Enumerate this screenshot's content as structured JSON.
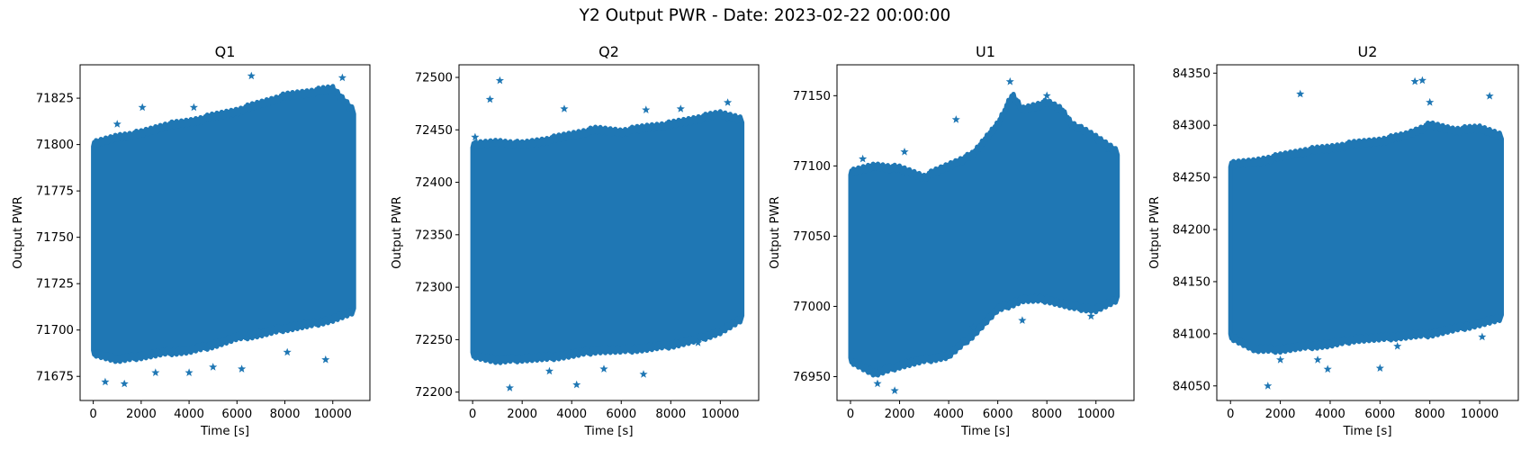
{
  "suptitle": "Y2 Output PWR - Date: 2023-02-22 00:00:00",
  "marker_color": "#1f77b4",
  "chart_data": [
    {
      "type": "scatter",
      "title": "Q1",
      "xlabel": "Time [s]",
      "ylabel": "Output PWR",
      "xlim": [
        -550,
        11550
      ],
      "ylim": [
        71662,
        71843
      ],
      "xticks": [
        0,
        2000,
        4000,
        6000,
        8000,
        10000
      ],
      "yticks": [
        71675,
        71700,
        71725,
        71750,
        71775,
        71800,
        71825
      ],
      "band": {
        "x": [
          0,
          1000,
          2000,
          3000,
          4000,
          5000,
          6000,
          7000,
          8000,
          9000,
          10000,
          10900
        ],
        "lower": [
          71688,
          71684,
          71686,
          71688,
          71689,
          71692,
          71696,
          71698,
          71701,
          71703,
          71706,
          71710
        ],
        "upper": [
          71800,
          71804,
          71806,
          71810,
          71812,
          71815,
          71818,
          71822,
          71826,
          71828,
          71830,
          71818
        ]
      },
      "outliers": [
        {
          "x": 500,
          "y": 71672
        },
        {
          "x": 1000,
          "y": 71811
        },
        {
          "x": 2050,
          "y": 71820
        },
        {
          "x": 1300,
          "y": 71671
        },
        {
          "x": 2600,
          "y": 71677
        },
        {
          "x": 4000,
          "y": 71677
        },
        {
          "x": 4200,
          "y": 71820
        },
        {
          "x": 5000,
          "y": 71680
        },
        {
          "x": 6200,
          "y": 71679
        },
        {
          "x": 6600,
          "y": 71837
        },
        {
          "x": 8100,
          "y": 71688
        },
        {
          "x": 9700,
          "y": 71684
        },
        {
          "x": 10400,
          "y": 71836
        }
      ]
    },
    {
      "type": "scatter",
      "title": "Q2",
      "xlabel": "Time [s]",
      "ylabel": "Output PWR",
      "xlim": [
        -550,
        11550
      ],
      "ylim": [
        72192,
        72512
      ],
      "xticks": [
        0,
        2000,
        4000,
        6000,
        8000,
        10000
      ],
      "yticks": [
        72200,
        72250,
        72300,
        72350,
        72400,
        72450,
        72500
      ],
      "band": {
        "x": [
          0,
          1000,
          2000,
          3000,
          4000,
          5000,
          6000,
          7000,
          8000,
          9000,
          10000,
          10900
        ],
        "lower": [
          72236,
          72230,
          72232,
          72233,
          72236,
          72240,
          72240,
          72242,
          72245,
          72250,
          72258,
          72270
        ],
        "upper": [
          72435,
          72438,
          72436,
          72440,
          72445,
          72450,
          72448,
          72452,
          72455,
          72460,
          72465,
          72460
        ]
      },
      "outliers": [
        {
          "x": 100,
          "y": 72443
        },
        {
          "x": 700,
          "y": 72479
        },
        {
          "x": 1100,
          "y": 72497
        },
        {
          "x": 1500,
          "y": 72204
        },
        {
          "x": 3100,
          "y": 72220
        },
        {
          "x": 3700,
          "y": 72470
        },
        {
          "x": 4200,
          "y": 72207
        },
        {
          "x": 5300,
          "y": 72222
        },
        {
          "x": 6900,
          "y": 72217
        },
        {
          "x": 7000,
          "y": 72469
        },
        {
          "x": 8400,
          "y": 72470
        },
        {
          "x": 10300,
          "y": 72476
        },
        {
          "x": 9100,
          "y": 72247
        }
      ]
    },
    {
      "type": "scatter",
      "title": "U1",
      "xlabel": "Time [s]",
      "ylabel": "Output PWR",
      "xlim": [
        -550,
        11550
      ],
      "ylim": [
        76933,
        77172
      ],
      "xticks": [
        0,
        2000,
        4000,
        6000,
        8000,
        10000
      ],
      "yticks": [
        76950,
        77000,
        77050,
        77100,
        77150
      ],
      "band": {
        "x": [
          0,
          1000,
          2000,
          3000,
          4000,
          5000,
          6000,
          6600,
          7000,
          8000,
          8600,
          9000,
          10000,
          10900
        ],
        "lower": [
          76962,
          76952,
          76958,
          76962,
          76965,
          76980,
          76998,
          77002,
          77005,
          77005,
          77002,
          77000,
          76998,
          77005
        ],
        "upper": [
          77095,
          77100,
          77098,
          77092,
          77100,
          77108,
          77130,
          77150,
          77140,
          77145,
          77140,
          77130,
          77120,
          77110
        ]
      },
      "outliers": [
        {
          "x": 500,
          "y": 77105
        },
        {
          "x": 1800,
          "y": 76940
        },
        {
          "x": 2200,
          "y": 77110
        },
        {
          "x": 1100,
          "y": 76945
        },
        {
          "x": 4300,
          "y": 77133
        },
        {
          "x": 6500,
          "y": 77160
        },
        {
          "x": 7000,
          "y": 76990
        },
        {
          "x": 8000,
          "y": 77150
        },
        {
          "x": 5000,
          "y": 76985
        },
        {
          "x": 9800,
          "y": 76993
        },
        {
          "x": 10500,
          "y": 77112
        }
      ]
    },
    {
      "type": "scatter",
      "title": "U2",
      "xlabel": "Time [s]",
      "ylabel": "Output PWR",
      "xlim": [
        -550,
        11550
      ],
      "ylim": [
        84036,
        84358
      ],
      "xticks": [
        0,
        2000,
        4000,
        6000,
        8000,
        10000
      ],
      "yticks": [
        84050,
        84100,
        84150,
        84200,
        84250,
        84300,
        84350
      ],
      "band": {
        "x": [
          0,
          1000,
          2000,
          3000,
          4000,
          5000,
          6000,
          7000,
          8000,
          9000,
          10000,
          10900
        ],
        "lower": [
          84098,
          84085,
          84085,
          84088,
          84090,
          84095,
          84096,
          84098,
          84100,
          84105,
          84110,
          84115
        ],
        "upper": [
          84262,
          84265,
          84270,
          84275,
          84278,
          84282,
          84285,
          84290,
          84300,
          84295,
          84297,
          84290
        ]
      },
      "outliers": [
        {
          "x": 1500,
          "y": 84050
        },
        {
          "x": 2800,
          "y": 84330
        },
        {
          "x": 3500,
          "y": 84075
        },
        {
          "x": 3900,
          "y": 84066
        },
        {
          "x": 6000,
          "y": 84067
        },
        {
          "x": 6700,
          "y": 84088
        },
        {
          "x": 7400,
          "y": 84342
        },
        {
          "x": 7700,
          "y": 84343
        },
        {
          "x": 8000,
          "y": 84322
        },
        {
          "x": 10400,
          "y": 84328
        },
        {
          "x": 2000,
          "y": 84075
        },
        {
          "x": 10100,
          "y": 84097
        }
      ]
    }
  ]
}
